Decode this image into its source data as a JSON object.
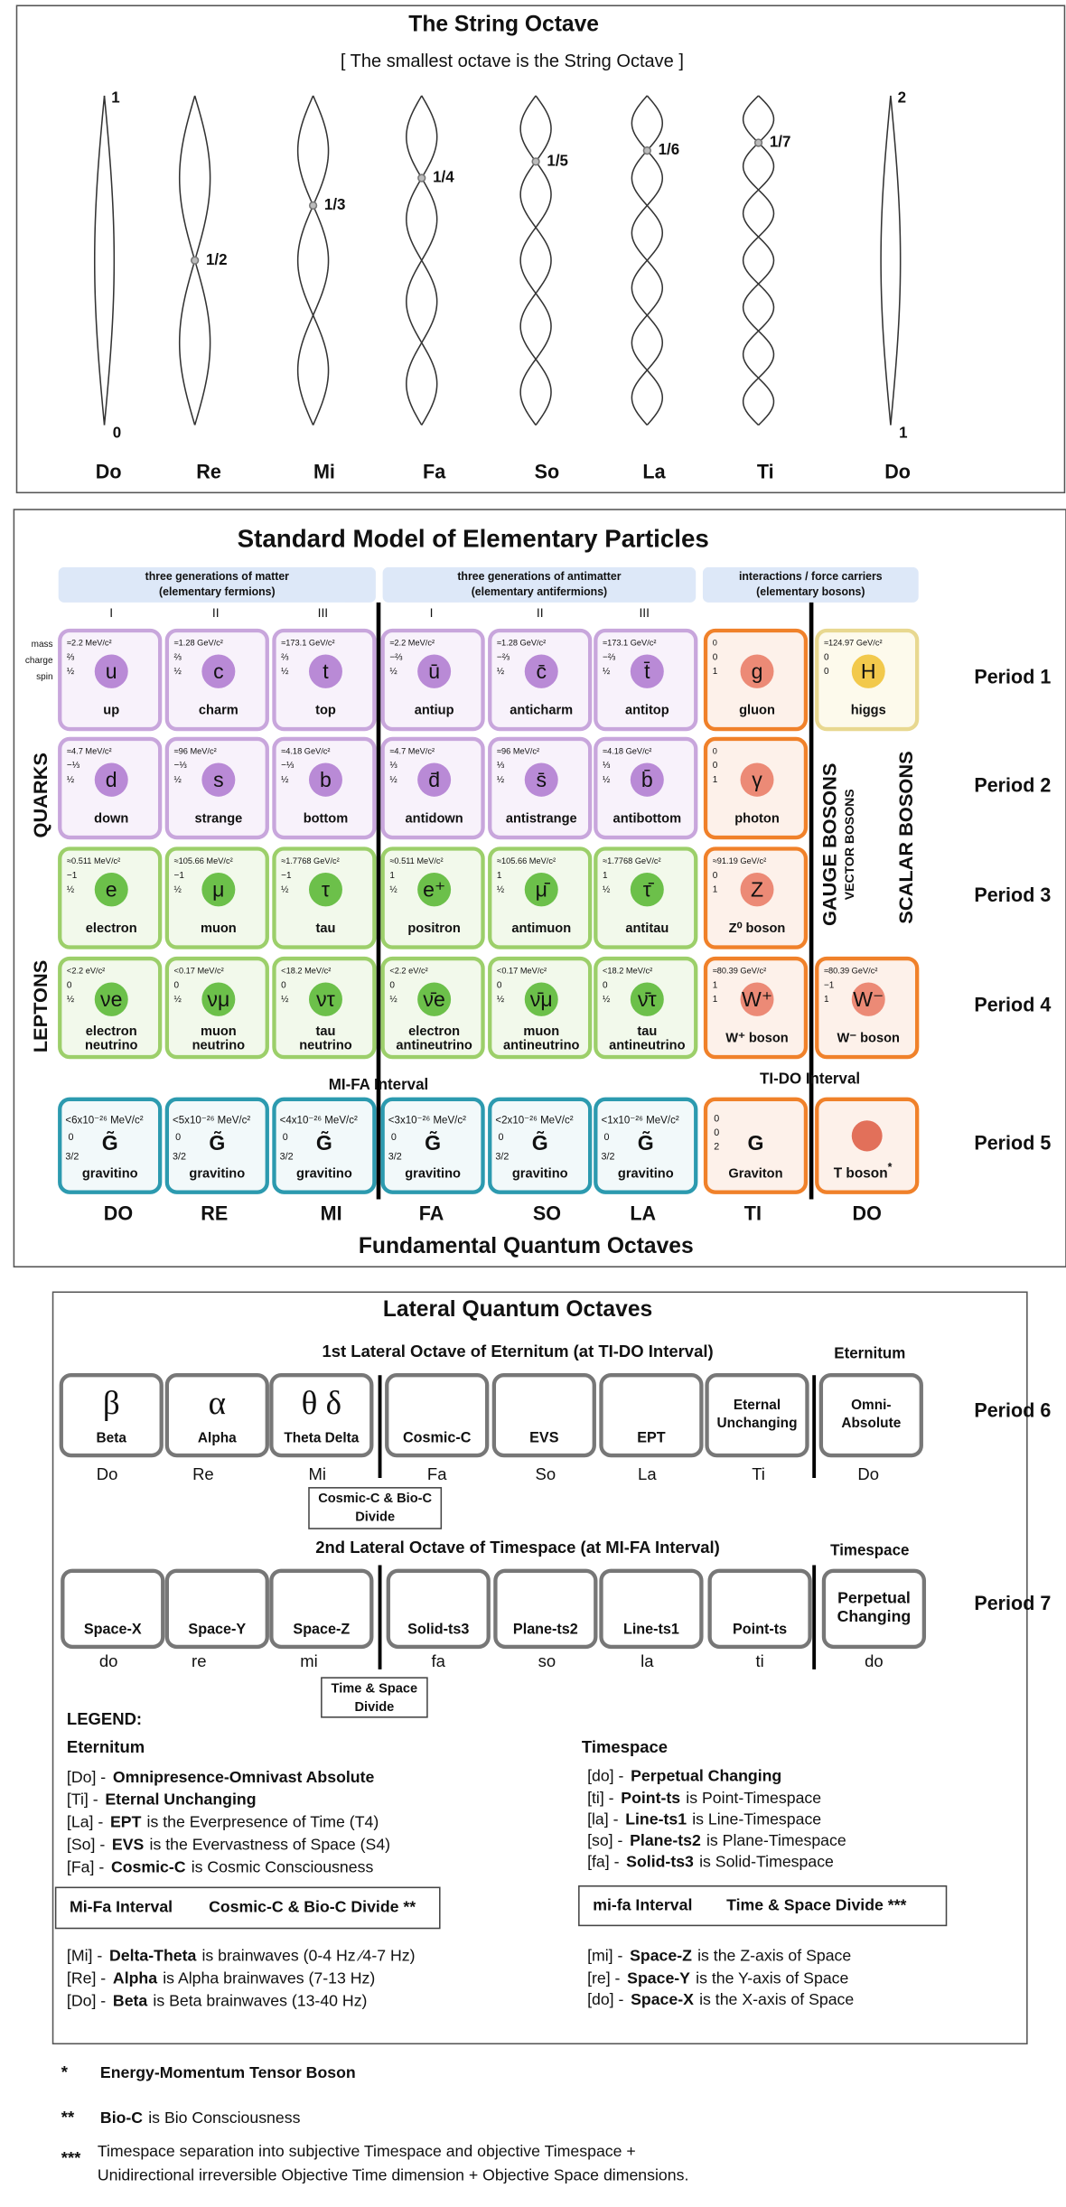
{
  "string_octave": {
    "title": "The String Octave",
    "subtitle": "[ The smallest octave is the String Octave ]",
    "strings": [
      {
        "note": "Do",
        "top": "1",
        "bottom": "0"
      },
      {
        "note": "Re",
        "node": "1/2"
      },
      {
        "note": "Mi",
        "node": "1/3"
      },
      {
        "note": "Fa",
        "node": "1/4"
      },
      {
        "note": "So",
        "node": "1/5"
      },
      {
        "note": "La",
        "node": "1/6"
      },
      {
        "note": "Ti",
        "node": "1/7"
      },
      {
        "note": "Do",
        "top": "2",
        "bottom": "1"
      }
    ]
  },
  "standard_model": {
    "title": "Standard Model of Elementary Particles",
    "groups": [
      {
        "title": "three generations of matter",
        "subtitle": "(elementary fermions)"
      },
      {
        "title": "three generations of antimatter",
        "subtitle": "(elementary antifermions)"
      },
      {
        "title": "interactions / force carriers",
        "subtitle": "(elementary bosons)"
      }
    ],
    "generations": [
      "I",
      "II",
      "III",
      "I",
      "II",
      "III"
    ],
    "property_labels": [
      "mass",
      "charge",
      "spin"
    ],
    "rows": [
      {
        "period": "Period 1",
        "cells": [
          {
            "mass": "≈2.2 MeV/c²",
            "charge": "⅔",
            "spin": "½",
            "symbol": "u",
            "name": [
              "up"
            ]
          },
          {
            "mass": "≈1.28 GeV/c²",
            "charge": "⅔",
            "spin": "½",
            "symbol": "c",
            "name": [
              "charm"
            ]
          },
          {
            "mass": "≈173.1 GeV/c²",
            "charge": "⅔",
            "spin": "½",
            "symbol": "t",
            "name": [
              "top"
            ]
          },
          {
            "mass": "≈2.2 MeV/c²",
            "charge": "−⅔",
            "spin": "½",
            "symbol": "ū",
            "name": [
              "antiup"
            ]
          },
          {
            "mass": "≈1.28 GeV/c²",
            "charge": "−⅔",
            "spin": "½",
            "symbol": "c̄",
            "name": [
              "anticharm"
            ]
          },
          {
            "mass": "≈173.1 GeV/c²",
            "charge": "−⅔",
            "spin": "½",
            "symbol": "t̄",
            "name": [
              "antitop"
            ]
          },
          {
            "mass": "0",
            "charge": "0",
            "spin": "1",
            "symbol": "g",
            "name": [
              "gluon"
            ]
          },
          {
            "mass": "≈124.97 GeV/c²",
            "charge": "0",
            "spin": "0",
            "symbol": "H",
            "name": [
              "higgs"
            ]
          }
        ]
      },
      {
        "period": "Period 2",
        "cells": [
          {
            "mass": "≈4.7 MeV/c²",
            "charge": "−⅓",
            "spin": "½",
            "symbol": "d",
            "name": [
              "down"
            ]
          },
          {
            "mass": "≈96 MeV/c²",
            "charge": "−⅓",
            "spin": "½",
            "symbol": "s",
            "name": [
              "strange"
            ]
          },
          {
            "mass": "≈4.18 GeV/c²",
            "charge": "−⅓",
            "spin": "½",
            "symbol": "b",
            "name": [
              "bottom"
            ]
          },
          {
            "mass": "≈4.7 MeV/c²",
            "charge": "⅓",
            "spin": "½",
            "symbol": "d̄",
            "name": [
              "antidown"
            ]
          },
          {
            "mass": "≈96 MeV/c²",
            "charge": "⅓",
            "spin": "½",
            "symbol": "s̄",
            "name": [
              "antistrange"
            ]
          },
          {
            "mass": "≈4.18 GeV/c²",
            "charge": "⅓",
            "spin": "½",
            "symbol": "b̄",
            "name": [
              "antibottom"
            ]
          },
          {
            "mass": "0",
            "charge": "0",
            "spin": "1",
            "symbol": "γ",
            "name": [
              "photon"
            ]
          }
        ]
      },
      {
        "period": "Period 3",
        "cells": [
          {
            "mass": "≈0.511 MeV/c²",
            "charge": "−1",
            "spin": "½",
            "symbol": "e",
            "name": [
              "electron"
            ]
          },
          {
            "mass": "≈105.66 MeV/c²",
            "charge": "−1",
            "spin": "½",
            "symbol": "μ",
            "name": [
              "muon"
            ]
          },
          {
            "mass": "≈1.7768 GeV/c²",
            "charge": "−1",
            "spin": "½",
            "symbol": "τ",
            "name": [
              "tau"
            ]
          },
          {
            "mass": "≈0.511 MeV/c²",
            "charge": "1",
            "spin": "½",
            "symbol": "e⁺",
            "name": [
              "positron"
            ]
          },
          {
            "mass": "≈105.66 MeV/c²",
            "charge": "1",
            "spin": "½",
            "symbol": "μ̄",
            "name": [
              "antimuon"
            ]
          },
          {
            "mass": "≈1.7768 GeV/c²",
            "charge": "1",
            "spin": "½",
            "symbol": "τ̄",
            "name": [
              "antitau"
            ]
          },
          {
            "mass": "≈91.19 GeV/c²",
            "charge": "0",
            "spin": "1",
            "symbol": "Z",
            "name": [
              "Z⁰ boson"
            ]
          }
        ]
      },
      {
        "period": "Period 4",
        "cells": [
          {
            "mass": "<2.2 eV/c²",
            "charge": "0",
            "spin": "½",
            "symbol": "νe",
            "name": [
              "electron",
              "neutrino"
            ]
          },
          {
            "mass": "<0.17 MeV/c²",
            "charge": "0",
            "spin": "½",
            "symbol": "νμ",
            "name": [
              "muon",
              "neutrino"
            ]
          },
          {
            "mass": "<18.2 MeV/c²",
            "charge": "0",
            "spin": "½",
            "symbol": "ντ",
            "name": [
              "tau",
              "neutrino"
            ]
          },
          {
            "mass": "<2.2 eV/c²",
            "charge": "0",
            "spin": "½",
            "symbol": "ν̄e",
            "name": [
              "electron",
              "antineutrino"
            ]
          },
          {
            "mass": "<0.17 MeV/c²",
            "charge": "0",
            "spin": "½",
            "symbol": "ν̄μ",
            "name": [
              "muon",
              "antineutrino"
            ]
          },
          {
            "mass": "<18.2 MeV/c²",
            "charge": "0",
            "spin": "½",
            "symbol": "ν̄τ",
            "name": [
              "tau",
              "antineutrino"
            ]
          },
          {
            "mass": "≈80.39 GeV/c²",
            "charge": "1",
            "spin": "1",
            "symbol": "W⁺",
            "name": [
              "W⁺ boson"
            ]
          },
          {
            "mass": "≈80.39 GeV/c²",
            "charge": "−1",
            "spin": "1",
            "symbol": "W⁻",
            "name": [
              "W⁻ boson"
            ]
          }
        ]
      },
      {
        "period": "Period 5",
        "cells": [
          {
            "mass": "<6x10⁻²⁶ MeV/c²",
            "charge": "0",
            "spin": "3/2",
            "symbol": "G̃",
            "name": [
              "gravitino"
            ]
          },
          {
            "mass": "<5x10⁻²⁶ MeV/c²",
            "charge": "0",
            "spin": "3/2",
            "symbol": "G̃",
            "name": [
              "gravitino"
            ]
          },
          {
            "mass": "<4x10⁻²⁶ MeV/c²",
            "charge": "0",
            "spin": "3/2",
            "symbol": "G̃",
            "name": [
              "gravitino"
            ]
          },
          {
            "mass": "<3x10⁻²⁶ MeV/c²",
            "charge": "0",
            "spin": "3/2",
            "symbol": "G̃",
            "name": [
              "gravitino"
            ]
          },
          {
            "mass": "<2x10⁻²⁶ MeV/c²",
            "charge": "0",
            "spin": "3/2",
            "symbol": "G̃",
            "name": [
              "gravitino"
            ]
          },
          {
            "mass": "<1x10⁻²⁶ MeV/c²",
            "charge": "0",
            "spin": "3/2",
            "symbol": "G̃",
            "name": [
              "gravitino"
            ]
          },
          {
            "mass": "0",
            "charge": "0",
            "spin": "2",
            "symbol": "G",
            "name": [
              "Graviton"
            ]
          },
          {
            "name": [
              "T boson"
            ],
            "mark": "*"
          }
        ]
      }
    ],
    "side_labels": {
      "quarks": "QUARKS",
      "leptons": "LEPTONS",
      "gauge": "GAUGE BOSONS",
      "vector": "VECTOR BOSONS",
      "scalar": "SCALAR BOSONS"
    },
    "intervals": [
      "MI-FA Interval",
      "TI-DO Interval"
    ],
    "notes": [
      "DO",
      "RE",
      "MI",
      "FA",
      "SO",
      "LA",
      "TI",
      "DO"
    ],
    "footer": "Fundamental Quantum Octaves"
  },
  "lateral": {
    "title": "Lateral Quantum Octaves",
    "octaves": [
      {
        "heading": "1st Lateral Octave of Eternitum (at TI-DO Interval)",
        "corner": "Eternitum",
        "period": "Period 6",
        "cells": [
          {
            "symbol": "β",
            "name": [
              "Beta"
            ]
          },
          {
            "symbol": "α",
            "name": [
              "Alpha"
            ]
          },
          {
            "symbol": "θ δ",
            "name": [
              "Theta Delta"
            ]
          },
          {
            "name": [
              "Cosmic-C"
            ]
          },
          {
            "name": [
              "EVS"
            ]
          },
          {
            "name": [
              "EPT"
            ]
          },
          {
            "name": [
              "Eternal",
              "Unchanging"
            ]
          },
          {
            "name": [
              "Omni-",
              "Absolute"
            ]
          }
        ],
        "notes": [
          "Do",
          "Re",
          "Mi",
          "Fa",
          "So",
          "La",
          "Ti",
          "Do"
        ],
        "divide": [
          "Cosmic-C & Bio-C",
          "Divide"
        ]
      },
      {
        "heading": "2nd Lateral Octave of Timespace (at MI-FA Interval)",
        "corner": "Timespace",
        "period": "Period 7",
        "cells": [
          {
            "name": [
              "Space-X"
            ]
          },
          {
            "name": [
              "Space-Y"
            ]
          },
          {
            "name": [
              "Space-Z"
            ]
          },
          {
            "name": [
              "Solid-ts3"
            ]
          },
          {
            "name": [
              "Plane-ts2"
            ]
          },
          {
            "name": [
              "Line-ts1"
            ]
          },
          {
            "name": [
              "Point-ts"
            ]
          },
          {
            "name": [
              "Perpetual",
              "Changing"
            ]
          }
        ],
        "notes": [
          "do",
          "re",
          "mi",
          "fa",
          "so",
          "la",
          "ti",
          "do"
        ],
        "divide": [
          "Time & Space",
          "Divide"
        ]
      }
    ]
  },
  "legend": {
    "title": "LEGEND:",
    "columns": [
      {
        "heading": "Eternitum",
        "items": [
          {
            "key": "[Do] -",
            "term": "Omnipresence-Omnivast Absolute"
          },
          {
            "key": "[Ti] -",
            "term": "Eternal Unchanging"
          },
          {
            "key": "[La] -",
            "term": "EPT",
            "text": "is the Everpresence of Time (T4)"
          },
          {
            "key": "[So] -",
            "term": "EVS",
            "text": "is the Evervastness of Space (S4)"
          },
          {
            "key": "[Fa] -",
            "term": "Cosmic-C",
            "text": "is Cosmic Consciousness"
          }
        ],
        "interval": {
          "name": "Mi-Fa Interval",
          "divide": "Cosmic-C & Bio-C Divide **"
        },
        "items2": [
          {
            "key": "[Mi] -",
            "term": "Delta-Theta",
            "text": "is brainwaves  (0-4 Hz ⁄4-7 Hz)"
          },
          {
            "key": "[Re] -",
            "term": "Alpha",
            "text": "is Alpha brainwaves (7-13 Hz)"
          },
          {
            "key": "[Do] -",
            "term": "Beta",
            "text": "is Beta brainwaves (13-40 Hz)"
          }
        ]
      },
      {
        "heading": "Timespace",
        "items": [
          {
            "key": "[do] -",
            "term": "Perpetual Changing"
          },
          {
            "key": "[ti] -",
            "term": "Point-ts",
            "text": "is Point-Timespace"
          },
          {
            "key": "[la] -",
            "term": "Line-ts1",
            "text": "is Line-Timespace"
          },
          {
            "key": "[so] -",
            "term": "Plane-ts2",
            "text": "is Plane-Timespace"
          },
          {
            "key": "[fa] -",
            "term": "Solid-ts3",
            "text": "is Solid-Timespace"
          }
        ],
        "interval": {
          "name": "mi-fa Interval",
          "divide": "Time & Space Divide ***"
        },
        "items2": [
          {
            "key": "[mi] -",
            "term": "Space-Z",
            "text": "is the Z-axis of Space"
          },
          {
            "key": "[re] -",
            "term": "Space-Y",
            "text": "is the Y-axis of Space"
          },
          {
            "key": "[do] -",
            "term": "Space-X",
            "text": "is the X-axis of Space"
          }
        ]
      }
    ]
  },
  "footnotes": [
    {
      "mark": "*",
      "term": "Energy-Momentum Tensor Boson"
    },
    {
      "mark": "**",
      "term": "Bio-C",
      "text": "is Bio Consciousness"
    },
    {
      "mark": "***",
      "lines": [
        "Timespace separation into subjective Timespace and objective Timespace +",
        "Unidirectional irreversible Objective Time dimension + Objective Space dimensions."
      ]
    }
  ]
}
